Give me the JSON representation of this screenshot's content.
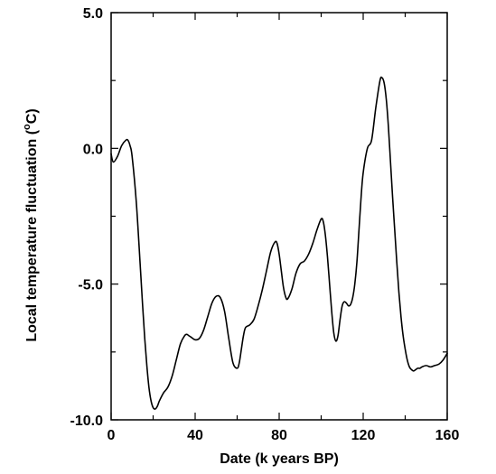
{
  "chart_data": {
    "type": "line",
    "title": "",
    "xlabel": "Date (k years BP)",
    "ylabel_main": "Local temperature fluctuation (",
    "ylabel_sup": "o",
    "ylabel_end": "C)",
    "xlim": [
      0,
      160
    ],
    "ylim": [
      -10,
      5
    ],
    "grid": false,
    "x_ticks": [
      0,
      40,
      80,
      120,
      160
    ],
    "x_tick_labels": [
      "0",
      "40",
      "80",
      "120",
      "160"
    ],
    "x_minor_ticks": [
      20,
      60,
      100,
      140
    ],
    "y_ticks": [
      5,
      0,
      -5,
      -10
    ],
    "y_tick_labels": [
      "5.0",
      "0.0",
      "-5.0",
      "-10.0"
    ],
    "y_minor_ticks": [
      2.5,
      -2.5,
      -7.5
    ],
    "series": [
      {
        "x": [
          0,
          1,
          3,
          5,
          7,
          8,
          9,
          10,
          12,
          14,
          15,
          16,
          17,
          18,
          19,
          20,
          21,
          22,
          23,
          25,
          27,
          29,
          31,
          33,
          35,
          36,
          37,
          38,
          40,
          42,
          44,
          46,
          48,
          50,
          52,
          54,
          56,
          58,
          60,
          61,
          62,
          63,
          64,
          66,
          68,
          70,
          72,
          74,
          76,
          78,
          79,
          80,
          81,
          82,
          83,
          84,
          86,
          88,
          90,
          92,
          94,
          96,
          98,
          100,
          101,
          102,
          103,
          104,
          105,
          106,
          107,
          108,
          109,
          110,
          111,
          112,
          113,
          114,
          115,
          116,
          117,
          118,
          119,
          120,
          122,
          124,
          126,
          128,
          129,
          130,
          131,
          132,
          133,
          134,
          135,
          136,
          137,
          138,
          139,
          140,
          141,
          142,
          143,
          144,
          145,
          146,
          147,
          148,
          150,
          152,
          154,
          156,
          158,
          160
        ],
        "y": [
          -0.2,
          -0.5,
          -0.3,
          0.1,
          0.3,
          0.3,
          0.1,
          -0.3,
          -2.0,
          -4.5,
          -5.8,
          -7.0,
          -8.0,
          -8.8,
          -9.3,
          -9.55,
          -9.6,
          -9.5,
          -9.3,
          -9.0,
          -8.8,
          -8.4,
          -7.8,
          -7.2,
          -6.9,
          -6.85,
          -6.9,
          -6.95,
          -7.05,
          -7.0,
          -6.7,
          -6.2,
          -5.7,
          -5.45,
          -5.5,
          -6.0,
          -7.0,
          -7.9,
          -8.1,
          -7.9,
          -7.4,
          -6.9,
          -6.6,
          -6.5,
          -6.3,
          -5.8,
          -5.2,
          -4.5,
          -3.8,
          -3.45,
          -3.5,
          -3.9,
          -4.5,
          -5.1,
          -5.45,
          -5.55,
          -5.2,
          -4.6,
          -4.25,
          -4.15,
          -3.9,
          -3.5,
          -3.0,
          -2.6,
          -2.7,
          -3.2,
          -4.0,
          -5.0,
          -6.0,
          -6.8,
          -7.1,
          -6.9,
          -6.3,
          -5.8,
          -5.65,
          -5.7,
          -5.8,
          -5.75,
          -5.5,
          -5.0,
          -4.2,
          -3.0,
          -1.8,
          -0.9,
          0.0,
          0.3,
          1.5,
          2.5,
          2.6,
          2.4,
          1.8,
          0.8,
          -0.5,
          -1.8,
          -3.0,
          -4.2,
          -5.3,
          -6.2,
          -6.9,
          -7.4,
          -7.8,
          -8.05,
          -8.15,
          -8.2,
          -8.15,
          -8.1,
          -8.1,
          -8.05,
          -8.0,
          -8.05,
          -8.0,
          -7.95,
          -7.8,
          -7.55
        ]
      }
    ]
  }
}
